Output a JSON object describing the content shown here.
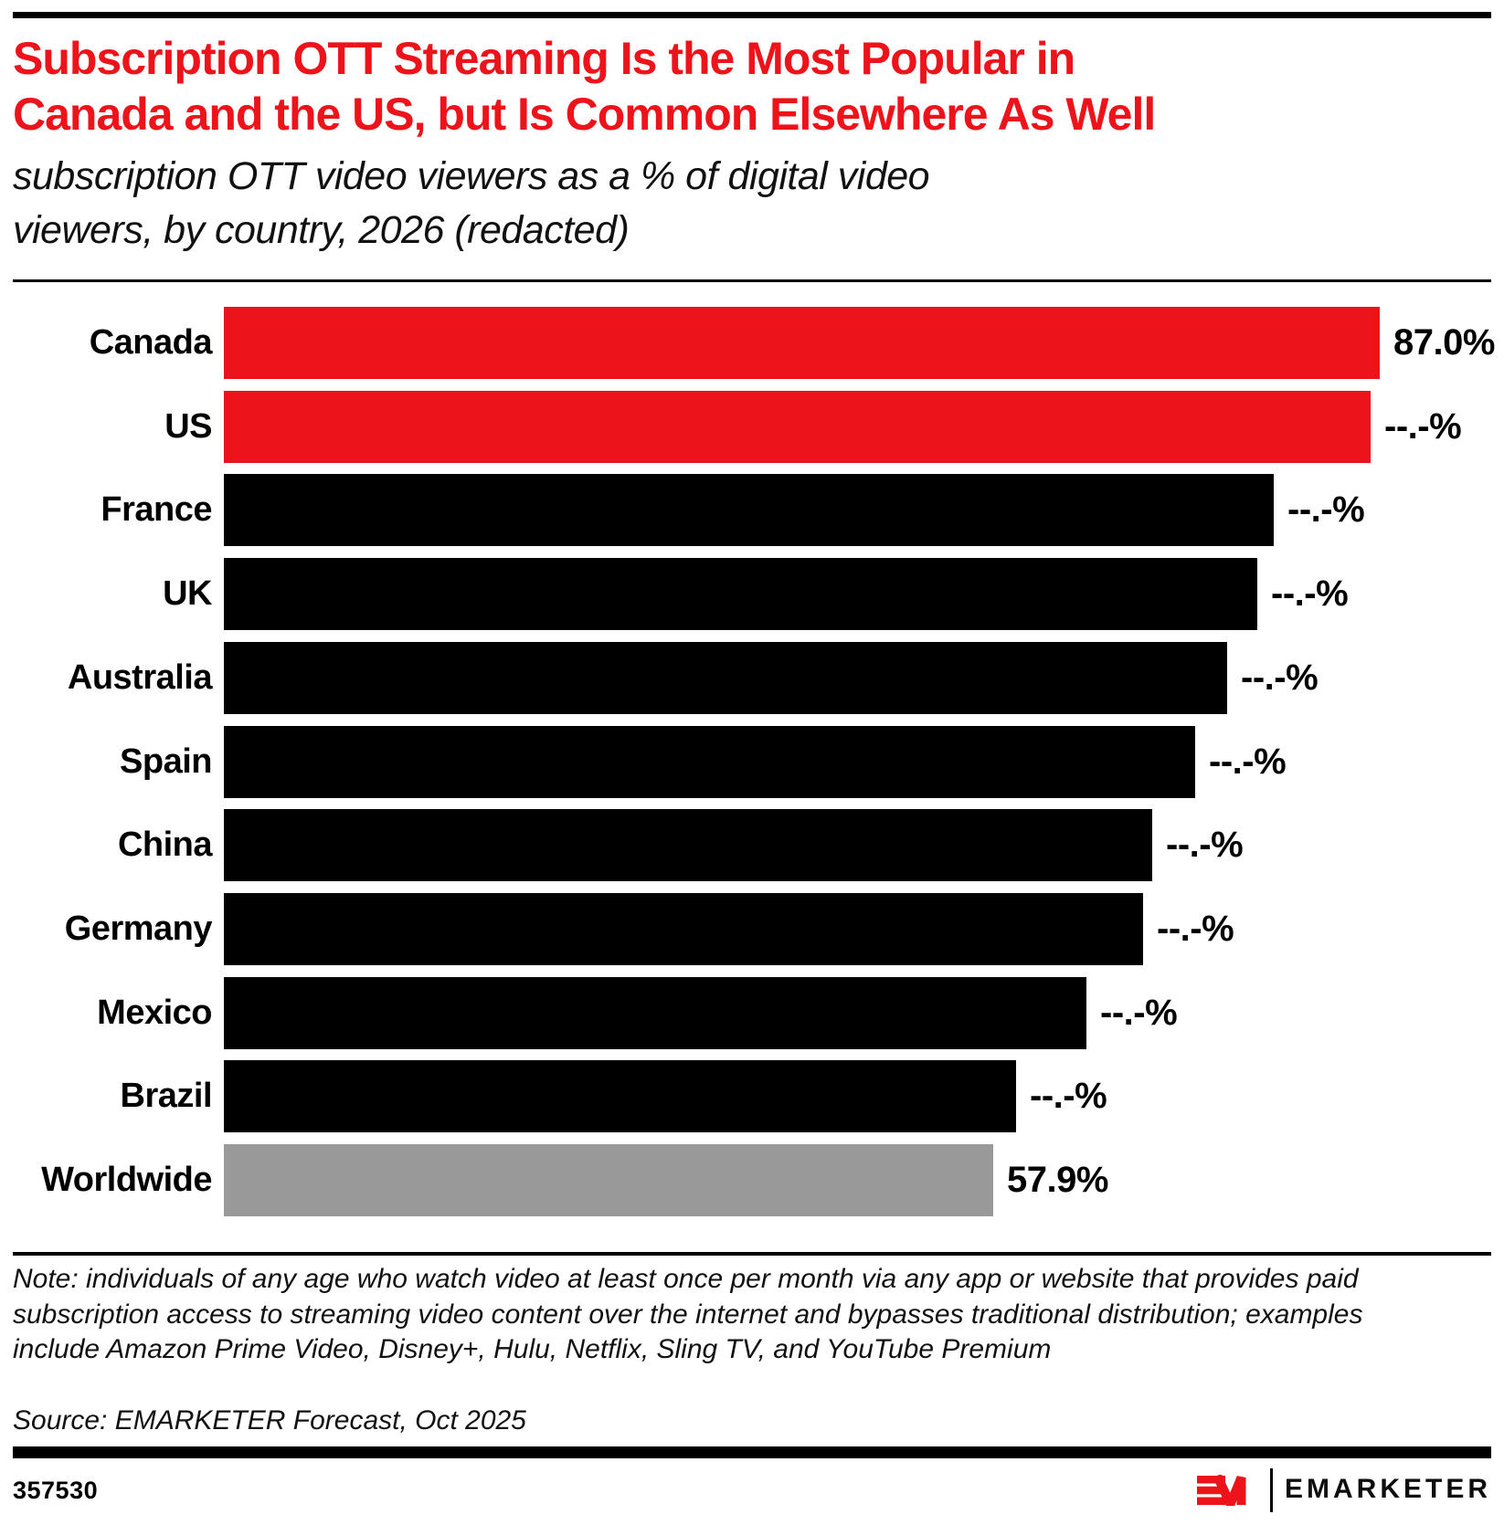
{
  "header": {
    "title_lines": [
      "Subscription OTT Streaming Is the Most Popular in",
      "Canada and the US, but Is Common Elsewhere As Well"
    ],
    "subtitle_lines": [
      "subscription OTT video viewers as a % of digital video",
      "viewers, by country, 2026 (redacted)"
    ]
  },
  "chart_data": {
    "type": "bar",
    "orientation": "horizontal",
    "title": "Subscription OTT Streaming Is the Most Popular in Canada and the US, but Is Common Elsewhere As Well",
    "subtitle": "subscription OTT video viewers as a % of digital video viewers, by country, 2026 (redacted)",
    "categories": [
      "Canada",
      "US",
      "France",
      "UK",
      "Australia",
      "Spain",
      "China",
      "Germany",
      "Mexico",
      "Brazil",
      "Worldwide"
    ],
    "values": [
      87.0,
      86.3,
      79.0,
      77.8,
      75.5,
      73.1,
      69.9,
      69.2,
      64.9,
      59.6,
      57.9
    ],
    "values_estimated_from_bar_lengths": [
      false,
      true,
      true,
      true,
      true,
      true,
      true,
      true,
      true,
      true,
      false
    ],
    "value_labels": [
      "87.0%",
      "--.-%",
      "--.-%",
      "--.-%",
      "--.-%",
      "--.-%",
      "--.-%",
      "--.-%",
      "--.-%",
      "--.-%",
      "57.9%"
    ],
    "bar_colors": [
      "#EC131B",
      "#EC131B",
      "#000000",
      "#000000",
      "#000000",
      "#000000",
      "#000000",
      "#000000",
      "#000000",
      "#000000",
      "#999999"
    ],
    "xlabel": "",
    "ylabel": "",
    "xlim": [
      0,
      87
    ],
    "grid": false,
    "legend": false,
    "accent_color": "#EC131B",
    "neutral_color": "#000000",
    "total_color": "#999999"
  },
  "footnote": {
    "note": "Note: individuals of any age who watch video at least once per month via any app or website that provides paid subscription access to streaming video content over the internet and bypasses traditional distribution; examples include Amazon Prime Video, Disney+, Hulu, Netflix, Sling TV, and YouTube Premium",
    "source": "Source: EMARKETER Forecast, Oct 2025"
  },
  "footer": {
    "chart_id": "357530",
    "logo_mark": "EM",
    "logo_text": "EMARKETER"
  }
}
